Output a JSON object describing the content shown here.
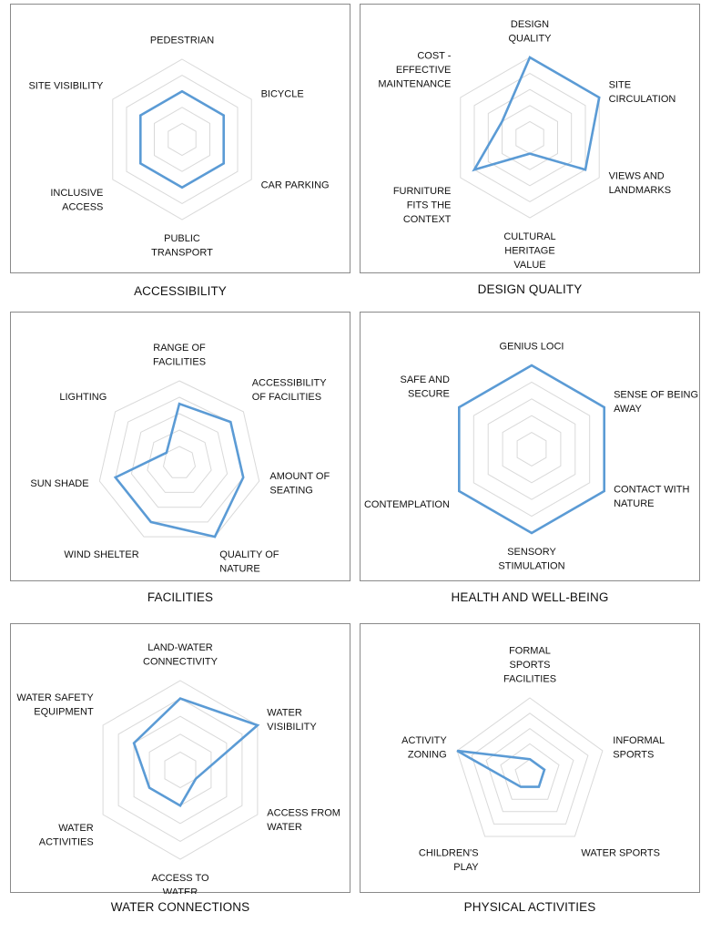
{
  "chart_data": [
    {
      "type": "radar",
      "title": "ACCESSIBILITY",
      "axes": [
        [
          "PEDESTRIAN"
        ],
        [
          "BICYCLE"
        ],
        [
          "CAR PARKING"
        ],
        [
          "PUBLIC",
          "TRANSPORT"
        ],
        [
          "INCLUSIVE",
          "ACCESS"
        ],
        [
          "SITE VISIBILITY"
        ]
      ],
      "levels": 5,
      "max": 5,
      "series": [
        {
          "values": [
            3.0,
            3.0,
            3.0,
            3.0,
            3.0,
            3.0
          ]
        }
      ],
      "line_color": "#5b9bd5",
      "grid_color": "#d9d9d9"
    },
    {
      "type": "radar",
      "title": "DESIGN QUALITY",
      "axes": [
        [
          "DESIGN",
          "QUALITY"
        ],
        [
          "SITE",
          "CIRCULATION"
        ],
        [
          "VIEWS AND",
          "LANDMARKS"
        ],
        [
          "CULTURAL",
          "HERITAGE",
          "VALUE"
        ],
        [
          "FURNITURE",
          "FITS THE",
          "CONTEXT"
        ],
        [
          "COST -",
          "EFFECTIVE",
          "MAINTENANCE"
        ]
      ],
      "levels": 5,
      "max": 5,
      "series": [
        {
          "values": [
            5,
            5,
            4,
            1,
            4,
            2
          ]
        }
      ],
      "line_color": "#5b9bd5",
      "grid_color": "#d9d9d9"
    },
    {
      "type": "radar",
      "title": "FACILITIES",
      "axes": [
        [
          "RANGE OF",
          "FACILITIES"
        ],
        [
          "ACCESSIBILITY",
          "OF FACILITIES"
        ],
        [
          "AMOUNT OF",
          "SEATING"
        ],
        [
          "QUALITY OF",
          "NATURE"
        ],
        [
          "WIND SHELTER"
        ],
        [
          "SUN SHADE"
        ],
        [
          "LIGHTING"
        ]
      ],
      "levels": 5,
      "max": 5,
      "series": [
        {
          "values": [
            3.6,
            4,
            4,
            5,
            4,
            4,
            1
          ]
        }
      ],
      "line_color": "#5b9bd5",
      "grid_color": "#d9d9d9"
    },
    {
      "type": "radar",
      "title": "HEALTH AND WELL-BEING",
      "axes": [
        [
          "GENIUS LOCI"
        ],
        [
          "SENSE OF BEING",
          "AWAY"
        ],
        [
          "CONTACT WITH",
          "NATURE"
        ],
        [
          "SENSORY",
          "STIMULATION"
        ],
        [
          "CONTEMPLATION"
        ],
        [
          "SAFE AND",
          "SECURE"
        ]
      ],
      "levels": 5,
      "max": 5,
      "series": [
        {
          "values": [
            5,
            5,
            5,
            5,
            5,
            5
          ]
        }
      ],
      "line_color": "#5b9bd5",
      "grid_color": "#d9d9d9"
    },
    {
      "type": "radar",
      "title": "WATER CONNECTIONS",
      "axes": [
        [
          "LAND-WATER",
          "CONNECTIVITY"
        ],
        [
          "WATER",
          "VISIBILITY"
        ],
        [
          "ACCESS FROM",
          "WATER"
        ],
        [
          "ACCESS TO",
          "WATER"
        ],
        [
          "WATER",
          "ACTIVITIES"
        ],
        [
          "WATER SAFETY",
          "EQUIPMENT"
        ]
      ],
      "levels": 5,
      "max": 5,
      "series": [
        {
          "values": [
            4,
            5,
            1,
            2,
            2,
            3
          ]
        }
      ],
      "line_color": "#5b9bd5",
      "grid_color": "#d9d9d9"
    },
    {
      "type": "radar",
      "title": "PHYSICAL ACTIVITIES",
      "axes": [
        [
          "FORMAL",
          "SPORTS",
          "FACILITIES"
        ],
        [
          "INFORMAL",
          "SPORTS"
        ],
        [
          "WATER SPORTS"
        ],
        [
          "CHILDREN'S",
          "PLAY"
        ],
        [
          "ACTIVITY",
          "ZONING"
        ]
      ],
      "levels": 5,
      "max": 5,
      "series": [
        {
          "values": [
            1,
            1,
            1,
            1,
            5
          ]
        }
      ],
      "line_color": "#5b9bd5",
      "grid_color": "#d9d9d9"
    }
  ]
}
